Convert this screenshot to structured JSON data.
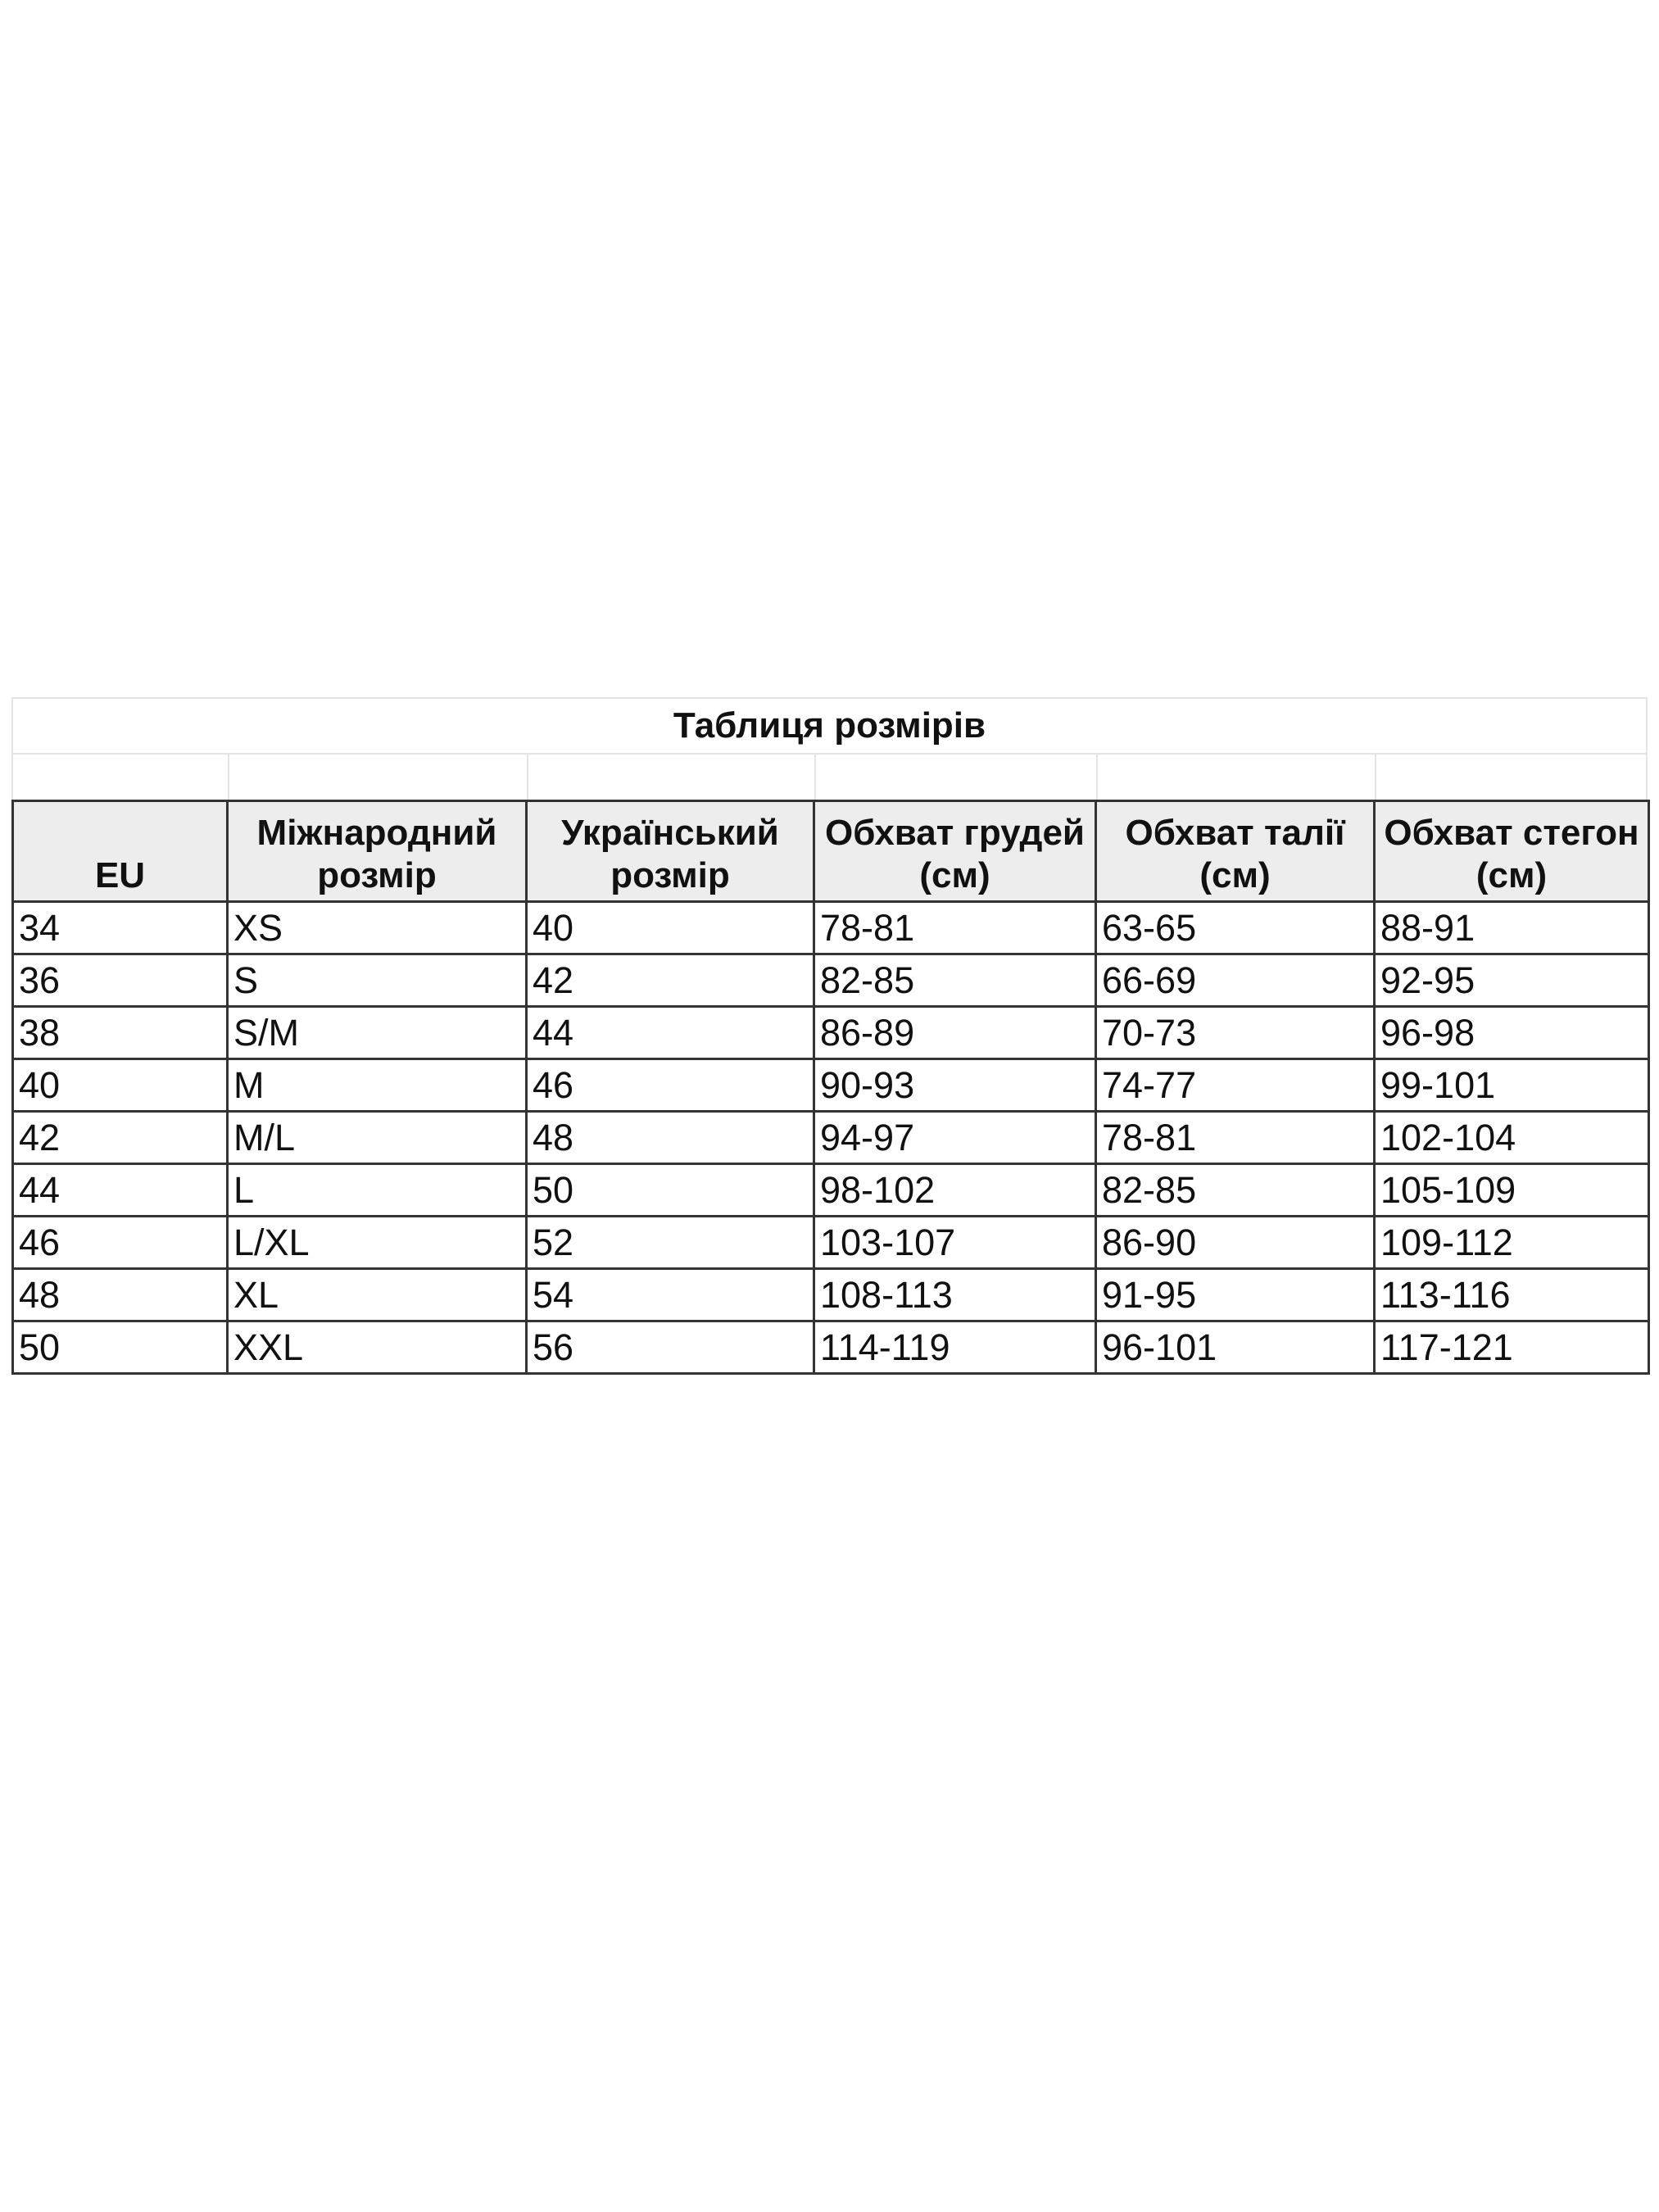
{
  "title": "Таблиця розмірів",
  "headers": [
    "EU",
    "Міжнародний розмір",
    "Український розмір",
    "Обхват грудей (см)",
    "Обхват талії (см)",
    "Обхват стегон (см)"
  ],
  "rows": [
    [
      "34",
      "XS",
      "40",
      "78-81",
      "63-65",
      "88-91"
    ],
    [
      "36",
      "S",
      "42",
      "82-85",
      "66-69",
      "92-95"
    ],
    [
      "38",
      "S/M",
      "44",
      "86-89",
      "70-73",
      "96-98"
    ],
    [
      "40",
      "M",
      "46",
      "90-93",
      "74-77",
      "99-101"
    ],
    [
      "42",
      "M/L",
      "48",
      "94-97",
      "78-81",
      "102-104"
    ],
    [
      "44",
      "L",
      "50",
      "98-102",
      "82-85",
      "105-109"
    ],
    [
      "46",
      "L/XL",
      "52",
      "103-107",
      "86-90",
      "109-112"
    ],
    [
      "48",
      "XL",
      "54",
      "108-113",
      "91-95",
      "113-116"
    ],
    [
      "50",
      "XXL",
      "56",
      "114-119",
      "96-101",
      "117-121"
    ]
  ]
}
